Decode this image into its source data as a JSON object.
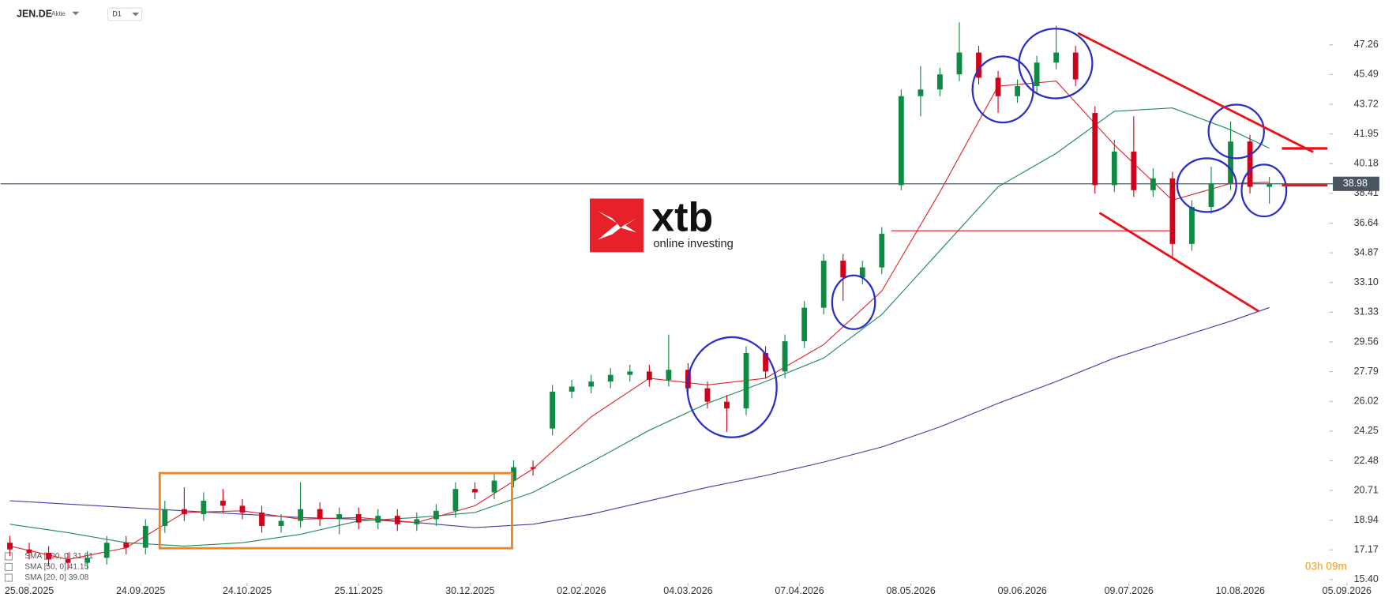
{
  "chart_data": {
    "type": "candlestick",
    "symbol": "JEN.DE",
    "instrument_type": "Aktie",
    "interval": "D1",
    "logo_text": "xtb",
    "logo_subtitle": "online investing",
    "countdown": "03h 09m",
    "last_price": 38.98,
    "up_color": "#0e8a45",
    "down_color": "#d0021b",
    "xlim": [
      -5,
      268
    ],
    "ylim": [
      15.3,
      49.93
    ],
    "xticks": [
      {
        "value": 0,
        "label": "25.08.2025"
      },
      {
        "value": 23,
        "label": "24.09.2025"
      },
      {
        "value": 45,
        "label": "24.10.2025"
      },
      {
        "value": 68,
        "label": "25.11.2025"
      },
      {
        "value": 91,
        "label": "30.12.2025"
      },
      {
        "value": 114,
        "label": "02.02.2026"
      },
      {
        "value": 136,
        "label": "04.03.2026"
      },
      {
        "value": 159,
        "label": "07.04.2026"
      },
      {
        "value": 182,
        "label": "08.05.2026"
      },
      {
        "value": 205,
        "label": "09.06.2026"
      },
      {
        "value": 227,
        "label": "09.07.2026"
      },
      {
        "value": 250,
        "label": "10.08.2026"
      },
      {
        "value": 272,
        "label": "05.09.2026"
      }
    ],
    "yticks": [
      {
        "value": 15.4,
        "label": "15.40"
      },
      17.17,
      18.94,
      20.71,
      22.48,
      24.25,
      26.02,
      27.79,
      29.56,
      31.33,
      {
        "value": 33.1,
        "label": "33.10"
      },
      34.87,
      36.64,
      38.41,
      40.18,
      41.95,
      43.72,
      45.49,
      47.26
    ],
    "candles": {
      "x": [
        -4,
        0,
        4,
        8,
        12,
        16,
        20,
        24,
        28,
        32,
        36,
        40,
        44,
        48,
        52,
        56,
        60,
        64,
        68,
        72,
        76,
        80,
        84,
        88,
        92,
        96,
        100,
        104,
        108,
        112,
        116,
        120,
        124,
        128,
        132,
        136,
        140,
        144,
        148,
        152,
        156,
        160,
        164,
        168,
        172,
        176,
        180,
        184,
        188,
        192,
        196,
        200,
        204,
        208,
        212,
        216,
        220,
        224,
        228,
        232,
        236,
        240,
        244,
        248,
        252,
        256
      ],
      "open": [
        17.6,
        17.2,
        17.0,
        16.6,
        16.4,
        16.7,
        17.6,
        17.3,
        18.6,
        19.6,
        19.3,
        20.1,
        19.8,
        19.4,
        18.6,
        18.9,
        19.6,
        19.0,
        19.3,
        18.8,
        19.2,
        18.7,
        19.0,
        19.5,
        20.8,
        20.6,
        21.3,
        22.1,
        24.4,
        26.6,
        26.9,
        27.2,
        27.6,
        27.8,
        27.3,
        27.9,
        26.8,
        26.0,
        25.6,
        28.9,
        27.8,
        29.6,
        31.6,
        34.4,
        33.4,
        34.0,
        38.9,
        44.2,
        44.6,
        45.5,
        46.8,
        45.3,
        44.2,
        44.8,
        46.2,
        46.8,
        43.2,
        38.9,
        40.9,
        38.6,
        39.3,
        35.4,
        37.6,
        39.0,
        41.5,
        38.8
      ],
      "high": [
        18.0,
        17.6,
        17.4,
        17.0,
        17.1,
        18.0,
        18.0,
        19.0,
        20.1,
        20.9,
        20.6,
        20.8,
        20.2,
        19.8,
        19.3,
        21.2,
        20.0,
        19.7,
        19.7,
        19.6,
        19.6,
        19.4,
        19.9,
        21.2,
        21.2,
        21.7,
        22.5,
        22.5,
        27.0,
        27.3,
        27.6,
        28.0,
        28.2,
        28.2,
        30.0,
        28.3,
        27.2,
        26.4,
        29.3,
        29.3,
        30.0,
        32.0,
        34.8,
        34.8,
        34.4,
        36.4,
        44.6,
        46.0,
        45.9,
        48.6,
        47.2,
        45.7,
        45.2,
        46.6,
        48.4,
        47.2,
        43.6,
        41.6,
        43.0,
        39.9,
        39.7,
        38.0,
        40.0,
        42.7,
        41.9,
        39.4
      ],
      "low": [
        16.8,
        16.6,
        16.2,
        16.0,
        16.0,
        16.3,
        16.9,
        16.9,
        18.2,
        18.9,
        18.9,
        19.4,
        19.0,
        18.2,
        18.2,
        18.5,
        18.6,
        18.1,
        18.4,
        18.4,
        18.3,
        18.3,
        18.6,
        19.1,
        20.2,
        20.2,
        20.9,
        21.6,
        24.0,
        26.2,
        26.5,
        26.8,
        27.2,
        26.9,
        26.9,
        26.4,
        25.6,
        24.2,
        25.2,
        27.4,
        27.4,
        29.2,
        31.2,
        32.0,
        33.0,
        33.6,
        38.6,
        43.0,
        44.2,
        45.1,
        44.9,
        43.2,
        43.8,
        44.4,
        45.8,
        44.8,
        38.4,
        38.5,
        38.2,
        38.2,
        34.6,
        35.0,
        37.2,
        38.6,
        38.4,
        37.8
      ],
      "close": [
        17.2,
        17.0,
        16.6,
        16.4,
        16.7,
        17.6,
        17.3,
        18.6,
        19.6,
        19.3,
        20.1,
        19.8,
        19.4,
        18.6,
        18.9,
        19.6,
        19.0,
        19.3,
        18.8,
        19.2,
        18.7,
        19.0,
        19.5,
        20.8,
        20.6,
        21.3,
        22.1,
        22.0,
        26.6,
        26.9,
        27.2,
        27.6,
        27.8,
        27.3,
        27.9,
        26.8,
        26.0,
        25.6,
        28.9,
        27.8,
        29.6,
        31.6,
        34.4,
        33.4,
        34.0,
        36.0,
        44.2,
        44.6,
        45.5,
        46.8,
        45.3,
        44.2,
        44.8,
        46.2,
        46.8,
        45.2,
        38.9,
        40.9,
        38.6,
        39.3,
        35.4,
        37.6,
        39.0,
        41.5,
        38.8,
        38.98
      ]
    },
    "series": [
      {
        "name": "SMA [200, 0] 31.61",
        "color": "#3c3fa0",
        "x": [
          -4,
          8,
          20,
          32,
          44,
          56,
          68,
          80,
          92,
          104,
          116,
          128,
          140,
          152,
          164,
          176,
          188,
          200,
          212,
          224,
          236,
          248,
          256
        ],
        "values": [
          20.1,
          19.9,
          19.7,
          19.5,
          19.3,
          19.1,
          19.0,
          18.8,
          18.5,
          18.7,
          19.3,
          20.1,
          20.9,
          21.6,
          22.4,
          23.3,
          24.5,
          25.9,
          27.2,
          28.6,
          29.7,
          30.8,
          31.61
        ]
      },
      {
        "name": "SMA [50, 0] 41.15",
        "color": "#1f8a5a",
        "x": [
          -4,
          8,
          20,
          32,
          44,
          56,
          68,
          80,
          92,
          104,
          116,
          128,
          140,
          152,
          164,
          176,
          188,
          200,
          212,
          224,
          236,
          248,
          256
        ],
        "values": [
          18.7,
          18.2,
          17.6,
          17.4,
          17.6,
          18.1,
          18.9,
          19.1,
          19.4,
          20.6,
          22.4,
          24.3,
          25.9,
          27.2,
          28.6,
          31.2,
          35.0,
          38.8,
          40.8,
          43.3,
          43.5,
          42.2,
          41.1
        ]
      },
      {
        "name": "SMA [20, 0] 39.08",
        "color": "#e0262b",
        "x": [
          -4,
          8,
          20,
          32,
          44,
          56,
          68,
          80,
          92,
          104,
          116,
          128,
          140,
          152,
          164,
          176,
          188,
          200,
          212,
          224,
          236,
          248,
          256
        ],
        "values": [
          17.4,
          16.6,
          17.3,
          19.4,
          19.5,
          19.0,
          19.1,
          18.8,
          19.8,
          22.0,
          25.1,
          27.4,
          27.0,
          27.4,
          29.4,
          32.6,
          38.5,
          44.8,
          45.1,
          41.3,
          38.0,
          39.0,
          39.08
        ]
      }
    ]
  }
}
